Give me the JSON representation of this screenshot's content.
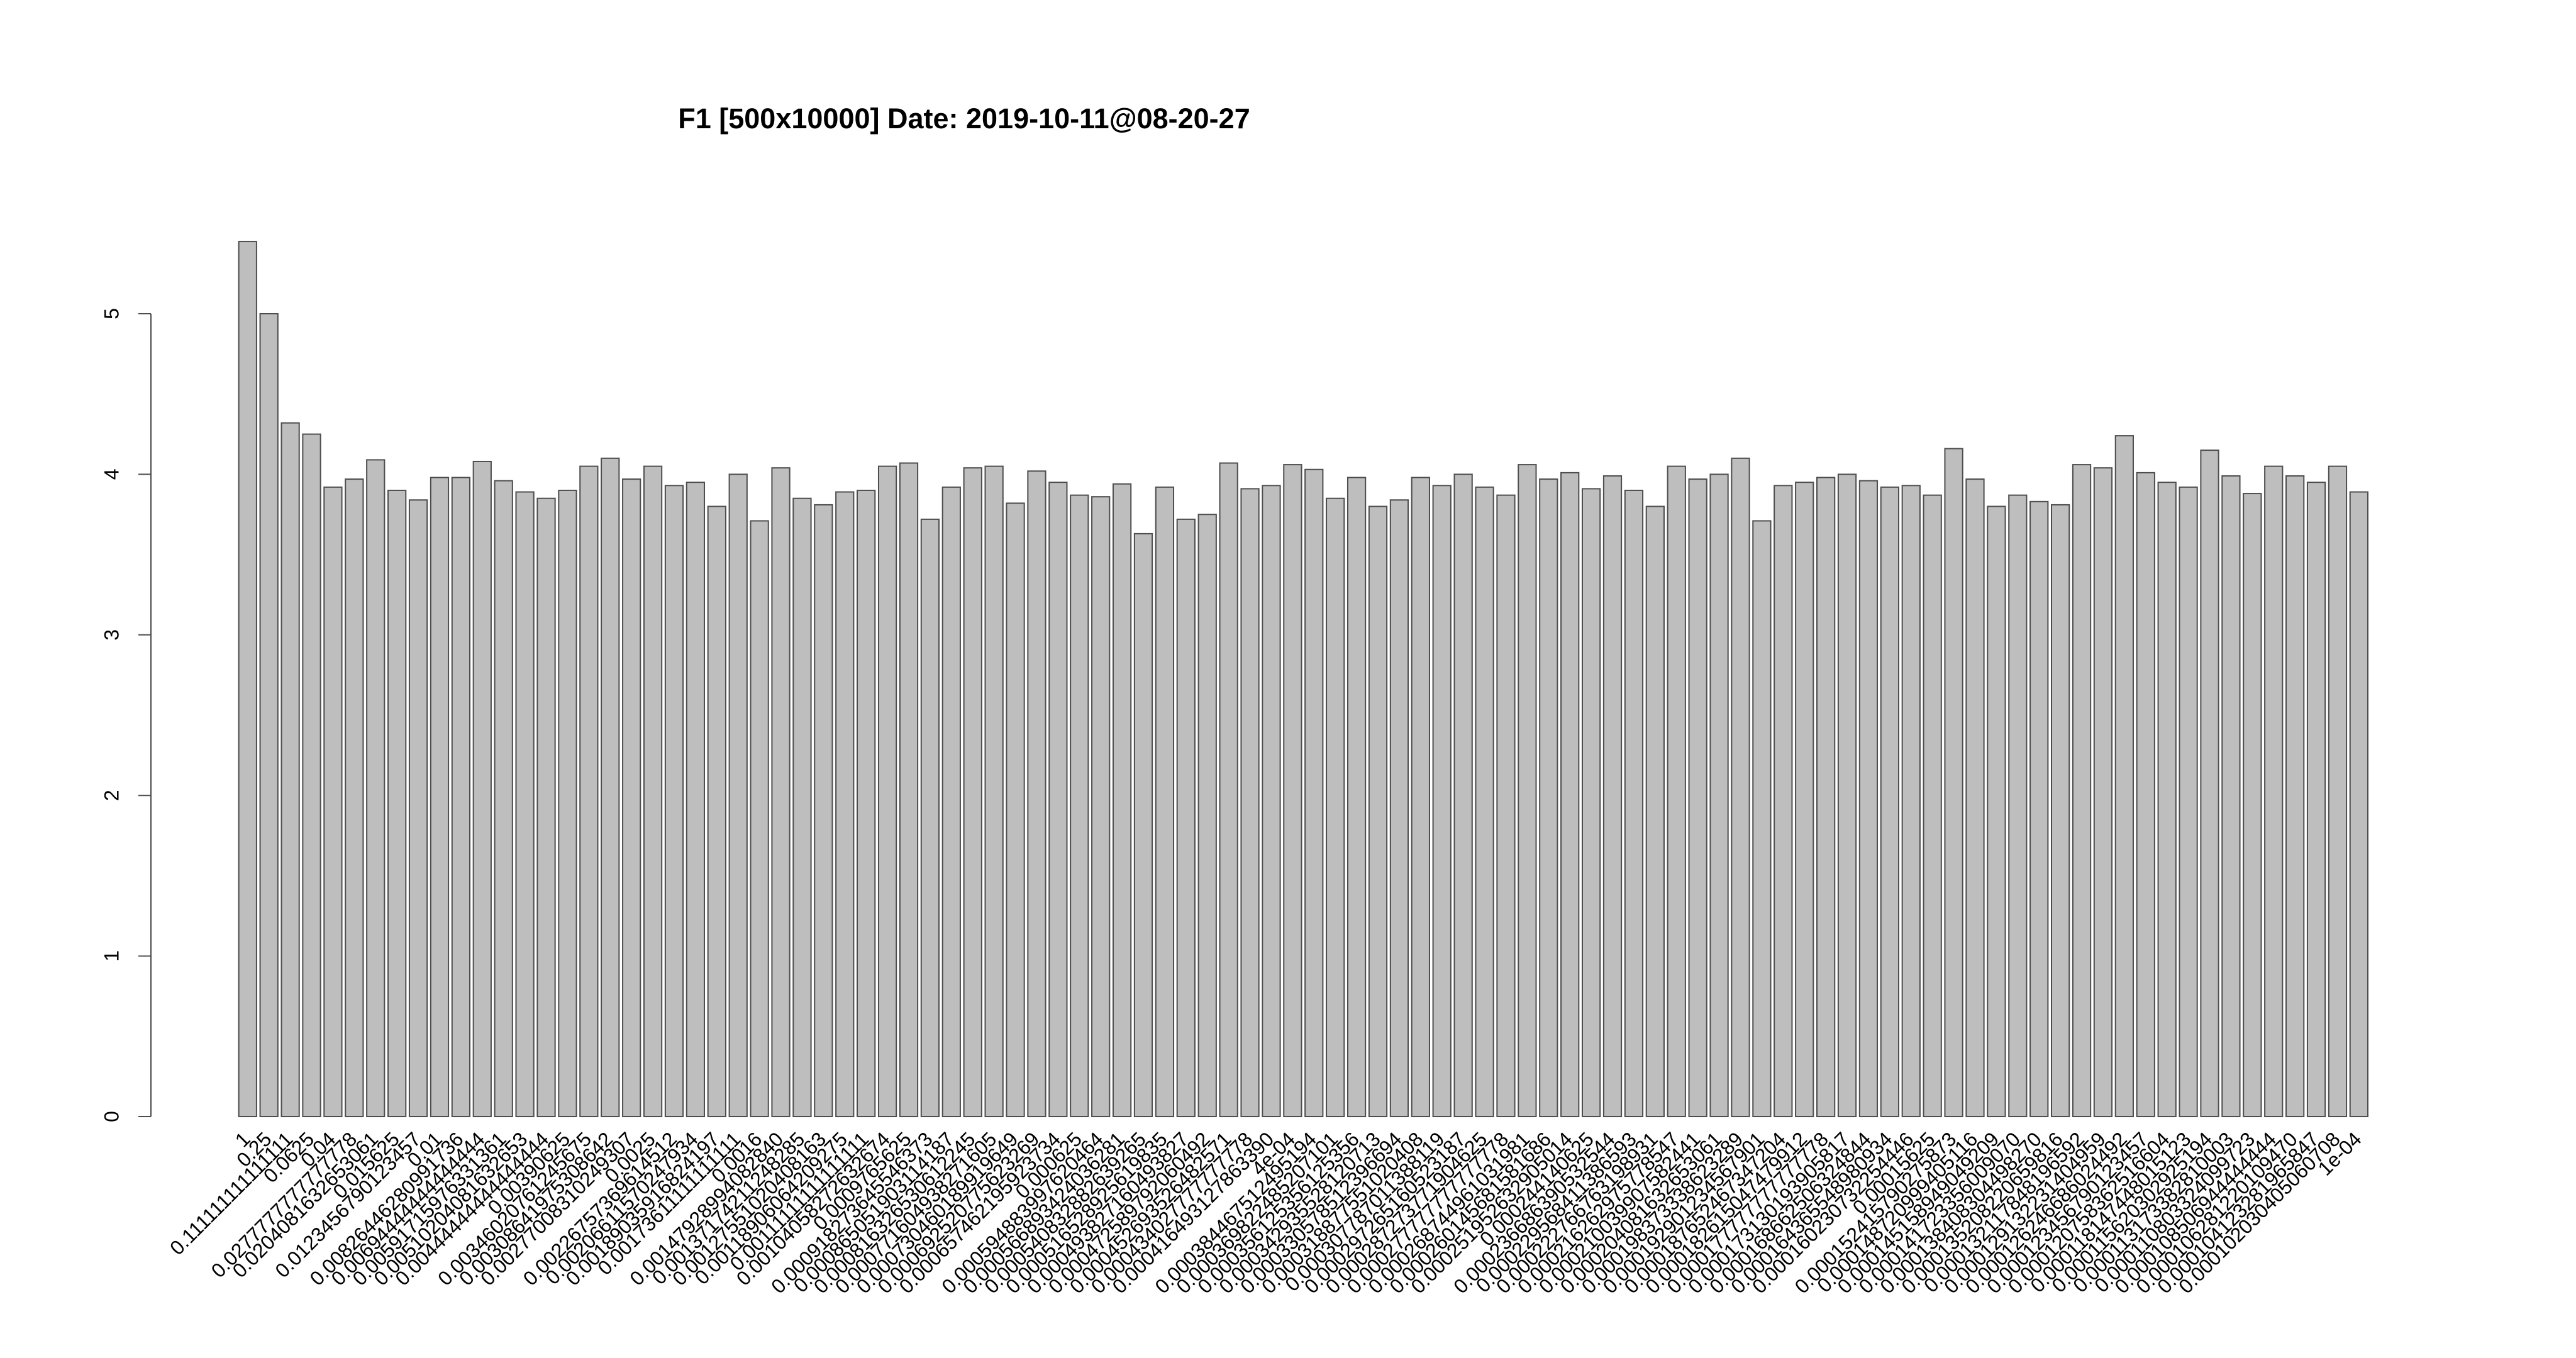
{
  "chart_data": {
    "type": "bar",
    "title": "F1 [500x10000] Date: 2019-10-11@08-20-27",
    "xlabel": "",
    "ylabel": "",
    "ylim": [
      0,
      5.5
    ],
    "yticks": [
      0,
      1,
      2,
      3,
      4,
      5
    ],
    "grid": false,
    "colors": {
      "bar_fill": "#bebebe",
      "bar_stroke": "#4d4d4d"
    },
    "categories": [
      "1",
      "0.25",
      "0.111111111111111",
      "0.0625",
      "0.04",
      "0.0277777777777778",
      "0.0204081632653061",
      "0.015625",
      "0.0123456790123457",
      "0.01",
      "0.00826446280991736",
      "0.00694444444444444",
      "0.00591715976331361",
      "0.00510204081632653",
      "0.00444444444444444",
      "0.00390625",
      "0.00346020761245675",
      "0.00308641975308642",
      "0.00277008310249307",
      "0.0025",
      "0.00226757369614512",
      "0.00206611570247934",
      "0.00189035916824197",
      "0.00173611111111111",
      "0.0016",
      "0.00147928994082840",
      "0.00137174211248285",
      "0.00127551020408163",
      "0.00118906064209275",
      "0.00111111111111111",
      "0.00104058272632674",
      "0.0009765625",
      "0.000918273645546373",
      "0.000865051903114187",
      "0.000816326530612245",
      "0.000771604938271605",
      "0.000730460189919649",
      "0.000692520775623269",
      "0.000657462195923734",
      "0.000625",
      "0.000594883997620464",
      "0.000566893424036281",
      "0.000540832882639265",
      "0.000516528925619835",
      "0.000493827160493827",
      "0.000472589792060492",
      "0.000452693526482571",
      "0.000434027777777778",
      "0.000416493127863390",
      "4e-04",
      "0.000384467512495194",
      "0.000369822485207101",
      "0.000356125356125356",
      "0.000342935528120713",
      "0.000330578512396694",
      "0.000318877551020408",
      "0.000307787011388119",
      "0.000297265160523187",
      "0.000287273771904625",
      "0.000277777777777778",
      "0.000268744961031981",
      "0.000260145681581686",
      "0.000251952632905014",
      "0.000244140625",
      "0.000236686390532544",
      "0.000229568411386593",
      "0.000222766763198931",
      "0.000216262975778547",
      "0.000210039907582441",
      "0.000204081632653061",
      "0.000198373338623289",
      "0.000192901234567901",
      "0.000187652467347204",
      "0.000182615047479912",
      "0.000177777777777778",
      "0.000173130193905817",
      "0.000168662506324844",
      "0.000164365548980934",
      "0.000160230732254446",
      "0.00015625",
      "0.000152415790275873",
      "0.000148720999405116",
      "0.000145158949049209",
      "0.000141723356009070",
      "0.000138408304498270",
      "0.000135208220659816",
      "0.000132117848196592",
      "0.000129132231404959",
      "0.000126246686024492",
      "0.000123456790123457",
      "0.000120758362516604",
      "0.000118147448015123",
      "0.000115620302925194",
      "0.000113173382810003",
      "0.000110803324099723",
      "0.000108506944444444",
      "0.000106281220109470",
      "0.000104123281965847",
      "0.000102030405060708",
      "1e-04"
    ],
    "values": [
      5.45,
      5.0,
      4.32,
      4.25,
      3.92,
      3.97,
      4.09,
      3.9,
      3.84,
      3.98,
      3.98,
      4.08,
      3.96,
      3.89,
      3.85,
      3.9,
      4.05,
      4.1,
      3.97,
      4.05,
      3.93,
      3.95,
      3.8,
      4.0,
      3.71,
      4.04,
      3.85,
      3.81,
      3.89,
      3.9,
      4.05,
      4.07,
      3.72,
      3.92,
      4.04,
      4.05,
      3.82,
      4.02,
      3.95,
      3.87,
      3.86,
      3.94,
      3.63,
      3.92,
      3.72,
      3.75,
      4.07,
      3.91,
      3.93,
      4.06,
      4.03,
      3.85,
      3.98,
      3.8,
      3.84,
      3.98,
      3.93,
      4.0,
      3.92,
      3.87,
      4.06,
      3.97,
      4.01,
      3.91,
      3.99,
      3.9,
      3.8,
      4.05,
      3.97,
      4.0,
      4.1,
      3.71,
      3.93,
      3.95,
      3.98,
      4.0,
      3.96,
      3.92,
      3.93,
      3.87,
      4.16,
      3.97,
      3.8,
      3.87,
      3.83,
      3.81,
      4.06,
      4.04,
      4.24,
      4.01,
      3.95,
      3.92,
      4.15,
      3.99,
      3.88,
      4.05,
      3.99,
      3.95,
      4.05,
      3.89
    ],
    "tick_label_rotation_deg": -45
  }
}
